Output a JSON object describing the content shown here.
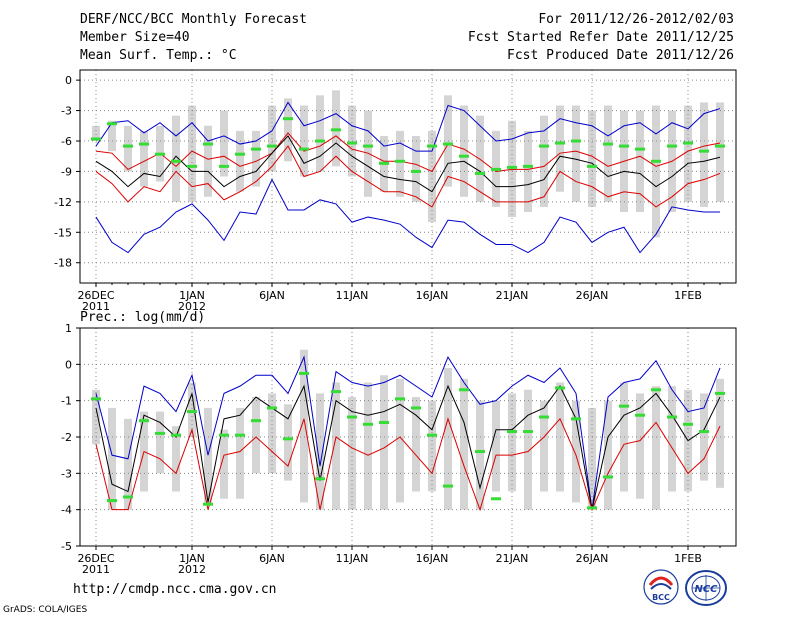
{
  "header": {
    "title": "DERF/NCC/BCC Monthly Forecast",
    "member_size": "Member Size=40",
    "variable": "Mean Surf. Temp.: °C",
    "forecast_period": "For 2011/12/26-2012/02/03",
    "refer_date": "Fcst Started Refer Date 2011/12/25",
    "produced_date": "Fcst Produced Date 2011/12/26"
  },
  "footer": {
    "url": "http://cmdp.ncc.cma.gov.cn",
    "credit": "GrADS: COLA/IGES",
    "bcc_logo_text": "BCC",
    "ncc_logo_text": "NCC"
  },
  "colors": {
    "box": "#d4d4d4",
    "median": "#000000",
    "upper": "#0000cc",
    "lower": "#dd0000",
    "climo": "#33dd33",
    "grid": "#888888"
  },
  "chart_data": [
    {
      "type": "line",
      "title": "Mean Surf. Temp.: °C",
      "ylim": [
        -20,
        1
      ],
      "yticks": [
        0,
        -3,
        -6,
        -9,
        -12,
        -15,
        -18
      ],
      "ytick_labels": [
        "0",
        "-3",
        "-6",
        "-9",
        "-12",
        "-15",
        "-18"
      ],
      "xtick_days": [
        0,
        6,
        11,
        16,
        21,
        26,
        31,
        37
      ],
      "xtick_labels": [
        {
          "day": 0,
          "line1": "26DEC",
          "line2": "2011"
        },
        {
          "day": 6,
          "line1": "1JAN",
          "line2": "2012"
        },
        {
          "day": 11,
          "line1": "6JAN",
          "line2": ""
        },
        {
          "day": 16,
          "line1": "11JAN",
          "line2": ""
        },
        {
          "day": 21,
          "line1": "16JAN",
          "line2": ""
        },
        {
          "day": 26,
          "line1": "21JAN",
          "line2": ""
        },
        {
          "day": 31,
          "line1": "26JAN",
          "line2": ""
        },
        {
          "day": 37,
          "line1": "1FEB",
          "line2": ""
        }
      ],
      "x_days": [
        0,
        1,
        2,
        3,
        4,
        5,
        6,
        7,
        8,
        9,
        10,
        11,
        12,
        13,
        14,
        15,
        16,
        17,
        18,
        19,
        20,
        21,
        22,
        23,
        24,
        25,
        26,
        27,
        28,
        29,
        30,
        31,
        32,
        33,
        34,
        35,
        36,
        37,
        38,
        39
      ],
      "series": [
        {
          "name": "ensemble-max",
          "color": "#0000cc",
          "values": [
            -6.5,
            -4.2,
            -4,
            -5.2,
            -4.2,
            -5.5,
            -4.2,
            -6,
            -5.5,
            -6.3,
            -6,
            -5,
            -2.2,
            -4.5,
            -4,
            -3.3,
            -4.5,
            -5,
            -6.5,
            -6.2,
            -7,
            -7,
            -2.5,
            -3,
            -4.5,
            -6,
            -5.8,
            -5.2,
            -5,
            -3.8,
            -4.2,
            -4.5,
            -5.5,
            -4.5,
            -4.2,
            -5.3,
            -4.2,
            -4.8,
            -3.3,
            -2.8
          ]
        },
        {
          "name": "ensemble-upper",
          "color": "#dd0000",
          "values": [
            -7,
            -7.2,
            -8.8,
            -8,
            -7.2,
            -8.5,
            -7,
            -7.8,
            -7.5,
            -8.5,
            -8,
            -7.2,
            -5.2,
            -7,
            -6.5,
            -5.5,
            -6.8,
            -7.2,
            -8,
            -8,
            -8.3,
            -9,
            -6.3,
            -6.8,
            -7.8,
            -9,
            -8.8,
            -8.8,
            -8.5,
            -7.2,
            -7,
            -7.5,
            -8.5,
            -8,
            -7.5,
            -8.5,
            -8,
            -7,
            -6.5,
            -6.2
          ]
        },
        {
          "name": "ensemble-median",
          "color": "#000000",
          "values": [
            -8,
            -9,
            -10.5,
            -9.2,
            -9.5,
            -7.5,
            -9,
            -9,
            -10.5,
            -9.5,
            -9,
            -7.2,
            -5.5,
            -8.2,
            -7.5,
            -6.2,
            -7.5,
            -8.5,
            -9.5,
            -9.8,
            -10,
            -11,
            -8.2,
            -8,
            -9,
            -10.5,
            -10.5,
            -10.3,
            -9.8,
            -7.5,
            -7.8,
            -8.2,
            -9.5,
            -9,
            -9.2,
            -10.5,
            -9.5,
            -8.2,
            -8,
            -7.6
          ]
        },
        {
          "name": "ensemble-lower",
          "color": "#dd0000",
          "values": [
            -9,
            -10.2,
            -12,
            -10.5,
            -11,
            -9,
            -10.5,
            -10.2,
            -11.8,
            -11,
            -10,
            -8.5,
            -6.5,
            -9.5,
            -9,
            -7.5,
            -9,
            -10,
            -11,
            -11,
            -11.5,
            -12.5,
            -9.5,
            -10,
            -11,
            -12,
            -12,
            -12,
            -11.5,
            -9,
            -10,
            -10.5,
            -11.5,
            -11,
            -11.2,
            -12.5,
            -11.5,
            -10.2,
            -9.8,
            -9.2
          ]
        },
        {
          "name": "ensemble-min",
          "color": "#0000cc",
          "values": [
            -13.5,
            -16,
            -17,
            -15.2,
            -14.5,
            -13,
            -12.2,
            -13.8,
            -15.8,
            -13,
            -13.2,
            -9.8,
            -12.8,
            -12.8,
            -11.8,
            -12.2,
            -14,
            -13.5,
            -13.8,
            -14.2,
            -15.5,
            -16.5,
            -13.8,
            -14,
            -15.2,
            -16.2,
            -16.2,
            -17,
            -16,
            -13.5,
            -14,
            -16,
            -15,
            -14.5,
            -17,
            -15.2,
            -12.5,
            -12.8,
            -13,
            -13
          ]
        },
        {
          "name": "climatology",
          "color": "#33dd33",
          "values": [
            -5.8,
            -4.3,
            -6.5,
            -6.3,
            -7.3,
            -8,
            -8.5,
            -6.3,
            -8.5,
            -7.3,
            -6.8,
            -6.5,
            -3.8,
            -6.8,
            -6,
            -4.9,
            -6.2,
            -6.5,
            -8.2,
            -8,
            -9,
            -6.5,
            -6.3,
            -7.5,
            -9.2,
            -8.8,
            -8.6,
            -8.5,
            -6.5,
            -6.2,
            -6,
            -8.5,
            -6.3,
            -6.5,
            -6.8,
            -8,
            -6.5,
            -6.2,
            -7,
            -6.5
          ]
        }
      ],
      "box_ranges": {
        "top": [
          -4.5,
          -4,
          -4.5,
          -5,
          -4.5,
          -3.5,
          -2.5,
          -4.5,
          -3,
          -5,
          -5,
          -2.5,
          -1.8,
          -2.5,
          -1.5,
          -1,
          -2.5,
          -3,
          -5.5,
          -5,
          -5.5,
          -5,
          -1.5,
          -2.5,
          -3.5,
          -5,
          -4,
          -5,
          -3.5,
          -2.5,
          -2.5,
          -3,
          -2.5,
          -3,
          -3,
          -2.5,
          -3,
          -2.5,
          -2.2,
          -2.2
        ],
        "bottom": [
          -6,
          -7,
          -9,
          -10.5,
          -10,
          -12,
          -12,
          -11.5,
          -9.5,
          -11,
          -10.5,
          -9,
          -8,
          -9.5,
          -9,
          -8.5,
          -9.5,
          -11.5,
          -11,
          -11.5,
          -12,
          -14,
          -10.5,
          -11.5,
          -12,
          -12.5,
          -13.5,
          -13,
          -12.5,
          -11,
          -12,
          -12.5,
          -12,
          -13,
          -13,
          -15.5,
          -13,
          -12,
          -12.5,
          -12
        ]
      }
    },
    {
      "type": "line",
      "title": "Prec.: log(mm/d)",
      "ylim": [
        -5,
        1
      ],
      "yticks": [
        1,
        0,
        -1,
        -2,
        -3,
        -4,
        -5
      ],
      "ytick_labels": [
        "1",
        "0",
        "-1",
        "-2",
        "-3",
        "-4",
        "-5"
      ],
      "xtick_days": [
        0,
        6,
        11,
        16,
        21,
        26,
        31,
        37
      ],
      "xtick_labels": [
        {
          "day": 0,
          "line1": "26DEC",
          "line2": "2011"
        },
        {
          "day": 6,
          "line1": "1JAN",
          "line2": "2012"
        },
        {
          "day": 11,
          "line1": "6JAN",
          "line2": ""
        },
        {
          "day": 16,
          "line1": "11JAN",
          "line2": ""
        },
        {
          "day": 21,
          "line1": "16JAN",
          "line2": ""
        },
        {
          "day": 26,
          "line1": "21JAN",
          "line2": ""
        },
        {
          "day": 31,
          "line1": "26JAN",
          "line2": ""
        },
        {
          "day": 37,
          "line1": "1FEB",
          "line2": ""
        }
      ],
      "x_days": [
        0,
        1,
        2,
        3,
        4,
        5,
        6,
        7,
        8,
        9,
        10,
        11,
        12,
        13,
        14,
        15,
        16,
        17,
        18,
        19,
        20,
        21,
        22,
        23,
        24,
        25,
        26,
        27,
        28,
        29,
        30,
        31,
        32,
        33,
        34,
        35,
        36,
        37,
        38,
        39
      ],
      "series": [
        {
          "name": "ensemble-max",
          "color": "#0000cc",
          "values": [
            -0.8,
            -2.5,
            -2.6,
            -0.6,
            -0.8,
            -1.3,
            -0.3,
            -2.5,
            -0.8,
            -0.6,
            -0.3,
            -0.3,
            -0.8,
            0.2,
            -2.8,
            -0.2,
            -0.5,
            -0.6,
            -0.5,
            -0.3,
            -0.6,
            -0.9,
            0.2,
            -0.5,
            -1.1,
            -1,
            -0.6,
            -0.3,
            -0.5,
            -0.1,
            -0.8,
            -4,
            -0.9,
            -0.5,
            -0.4,
            0.1,
            -0.7,
            -1.3,
            -1.2,
            -0.1
          ]
        },
        {
          "name": "ensemble-upper",
          "color": "#000000",
          "values": [
            -1.2,
            -3.3,
            -3.5,
            -1.4,
            -1.6,
            -2,
            -0.8,
            -3.8,
            -1.5,
            -1.4,
            -0.9,
            -1.2,
            -1.5,
            -0.6,
            -3.2,
            -1,
            -1.3,
            -1.4,
            -1.3,
            -1.1,
            -1.4,
            -1.8,
            -0.6,
            -1.6,
            -3.4,
            -1.8,
            -1.8,
            -1.4,
            -1.2,
            -0.6,
            -1.5,
            -4,
            -2,
            -1.4,
            -1.2,
            -0.8,
            -1.4,
            -2.1,
            -1.8,
            -0.9
          ]
        },
        {
          "name": "ensemble-lower",
          "color": "#dd0000",
          "values": [
            -2.2,
            -4,
            -4,
            -2.4,
            -2.6,
            -3,
            -1.8,
            -4,
            -2.5,
            -2.4,
            -2,
            -2.4,
            -2.8,
            -1.5,
            -4,
            -2,
            -2.3,
            -2.5,
            -2.3,
            -2,
            -2.5,
            -3,
            -1.5,
            -2.8,
            -4,
            -2.5,
            -2.5,
            -2.4,
            -2,
            -1.5,
            -2.5,
            -4,
            -3,
            -2.2,
            -2.1,
            -1.6,
            -2.3,
            -3,
            -2.6,
            -1.7
          ]
        },
        {
          "name": "climatology",
          "color": "#33dd33",
          "values": [
            -0.95,
            -3.75,
            -3.65,
            -1.55,
            -1.9,
            -1.95,
            -1.3,
            -3.85,
            -1.95,
            -1.95,
            -1.55,
            -1.2,
            -2.05,
            -0.25,
            -3.15,
            -0.75,
            -1.45,
            -1.65,
            -1.6,
            -0.95,
            -1.2,
            -1.95,
            -3.35,
            -0.7,
            -2.4,
            -3.7,
            -1.85,
            -1.85,
            -1.45,
            -0.65,
            -1.5,
            -3.95,
            -3.1,
            -1.15,
            -1.4,
            -0.7,
            -1.45,
            -1.65,
            -1.85,
            -0.8
          ]
        }
      ],
      "box_ranges": {
        "top": [
          -0.7,
          -1.2,
          -1.5,
          -1.3,
          -1.3,
          -1.7,
          -0.5,
          -1.2,
          -1.8,
          -1.2,
          -0.9,
          -0.8,
          -1.1,
          0.4,
          -0.8,
          -0.5,
          -0.9,
          -0.5,
          -0.3,
          -0.4,
          -0.9,
          -1,
          -0.1,
          -0.4,
          -1,
          -1,
          -0.8,
          -0.7,
          -1,
          -0.5,
          -1,
          -1.2,
          -1,
          -0.5,
          -0.8,
          -0.6,
          -0.6,
          -0.7,
          -0.8,
          -0.4
        ],
        "bottom": [
          -2.2,
          -4,
          -4,
          -3.5,
          -3,
          -3.5,
          -2,
          -3.8,
          -3.7,
          -3.7,
          -3,
          -3,
          -3.2,
          -3.8,
          -4,
          -4,
          -4,
          -4,
          -4,
          -3.8,
          -3.5,
          -3.5,
          -4,
          -4,
          -4,
          -3.5,
          -3.5,
          -4,
          -3.5,
          -3.5,
          -3.8,
          -4,
          -4,
          -3.5,
          -3.7,
          -4,
          -3.5,
          -3.5,
          -3.2,
          -3.4
        ]
      }
    }
  ]
}
